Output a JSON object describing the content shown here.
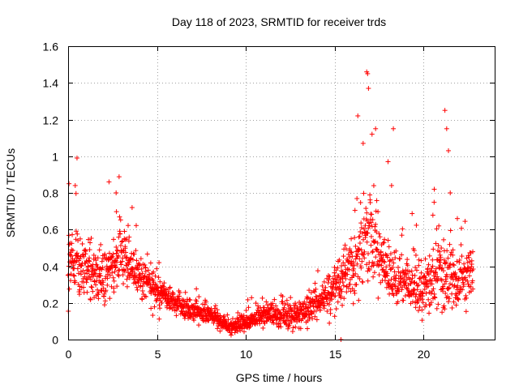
{
  "chart_data": {
    "type": "scatter",
    "title": "Day 118 of 2023, SRMTID for receiver trds",
    "xlabel": "GPS time / hours",
    "ylabel": "SRMTID / TECUs",
    "xlim": [
      0,
      24
    ],
    "ylim": [
      0,
      1.6
    ],
    "xticks": [
      0,
      5,
      10,
      15,
      20
    ],
    "yticks": [
      0,
      0.2,
      0.4,
      0.6,
      0.8,
      1,
      1.2,
      1.4,
      1.6
    ],
    "xtick_labels": [
      "0",
      "5",
      "10",
      "15",
      "20"
    ],
    "ytick_labels": [
      "0",
      "0.2",
      "0.4",
      "0.6",
      "0.8",
      "1",
      "1.2",
      "1.4",
      "1.6"
    ],
    "grid": true,
    "marker": "plus",
    "series": [
      {
        "name": "SRMTID",
        "color": "#ff0000",
        "profile": {
          "hours": [
            0,
            0.5,
            1,
            2,
            3,
            4,
            5,
            6,
            7,
            8,
            9,
            10,
            11,
            12,
            13,
            14,
            15,
            16,
            17,
            18,
            19,
            20,
            21,
            22,
            22.8
          ],
          "median": [
            0.42,
            0.4,
            0.38,
            0.34,
            0.46,
            0.36,
            0.26,
            0.2,
            0.16,
            0.14,
            0.07,
            0.09,
            0.14,
            0.13,
            0.13,
            0.2,
            0.28,
            0.38,
            0.58,
            0.38,
            0.3,
            0.28,
            0.38,
            0.33,
            0.35
          ],
          "spread": [
            0.17,
            0.16,
            0.13,
            0.12,
            0.12,
            0.1,
            0.09,
            0.07,
            0.05,
            0.04,
            0.03,
            0.04,
            0.05,
            0.05,
            0.07,
            0.08,
            0.1,
            0.14,
            0.22,
            0.13,
            0.12,
            0.13,
            0.18,
            0.12,
            0.1
          ]
        },
        "outliers": [
          [
            0.05,
            0.85
          ],
          [
            0.5,
            0.99
          ],
          [
            0.4,
            0.84
          ],
          [
            2.3,
            0.86
          ],
          [
            2.7,
            0.8
          ],
          [
            3.6,
            0.72
          ],
          [
            16.3,
            1.22
          ],
          [
            16.8,
            1.46
          ],
          [
            16.85,
            1.45
          ],
          [
            16.9,
            1.37
          ],
          [
            17.1,
            1.12
          ],
          [
            17.3,
            1.15
          ],
          [
            16.6,
            1.07
          ],
          [
            18.0,
            0.97
          ],
          [
            18.3,
            1.15
          ],
          [
            18.2,
            0.84
          ],
          [
            20.6,
            0.82
          ],
          [
            21.2,
            1.25
          ],
          [
            21.3,
            1.15
          ],
          [
            21.4,
            1.03
          ],
          [
            21.5,
            0.8
          ],
          [
            21.9,
            0.66
          ],
          [
            15.35,
            0.0
          ]
        ]
      }
    ]
  }
}
